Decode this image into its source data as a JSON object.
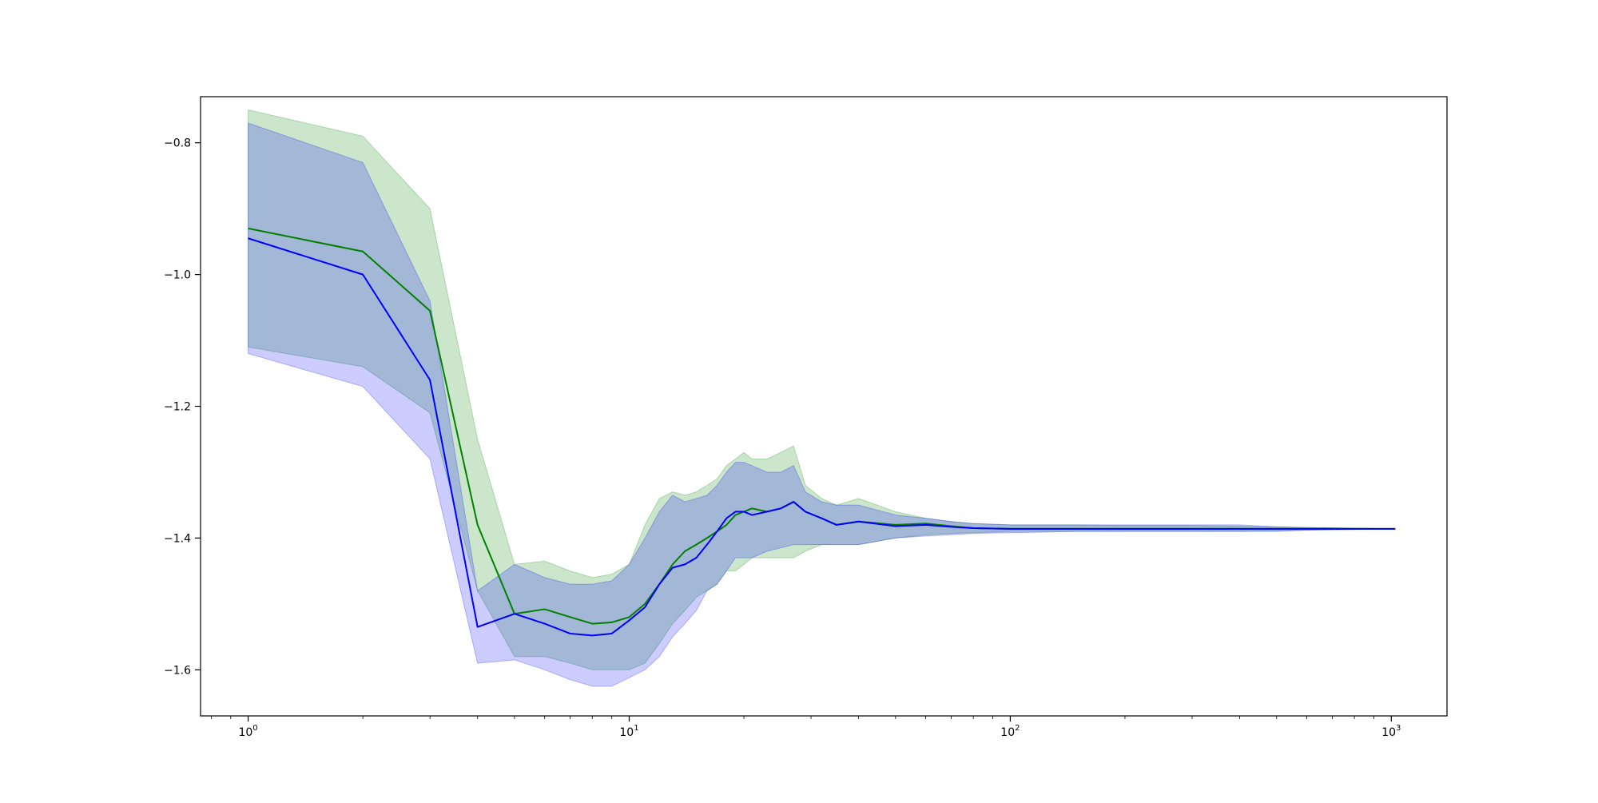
{
  "chart_data": {
    "type": "line",
    "title": "",
    "xlabel": "",
    "ylabel": "",
    "xscale": "log",
    "xlim": [
      0.75,
      1400
    ],
    "ylim": [
      -1.67,
      -0.73
    ],
    "grid": false,
    "x_ticks": [
      {
        "value": 1,
        "base": "10",
        "exp": "0"
      },
      {
        "value": 10,
        "base": "10",
        "exp": "1"
      },
      {
        "value": 100,
        "base": "10",
        "exp": "2"
      },
      {
        "value": 1000,
        "base": "10",
        "exp": "3"
      }
    ],
    "y_ticks": [
      {
        "value": -0.8,
        "label": "−0.8"
      },
      {
        "value": -1.0,
        "label": "−1.0"
      },
      {
        "value": -1.2,
        "label": "−1.2"
      },
      {
        "value": -1.4,
        "label": "−1.4"
      },
      {
        "value": -1.6,
        "label": "−1.6"
      }
    ],
    "series": [
      {
        "color": "#008000",
        "band_color": "#008000",
        "band_opacity": 0.2,
        "x": [
          1,
          2,
          3,
          4,
          5,
          6,
          7,
          8,
          9,
          10,
          11,
          12,
          13,
          14,
          15,
          16,
          17,
          18,
          19,
          20,
          21,
          23,
          25,
          27,
          29,
          32,
          35,
          40,
          50,
          60,
          70,
          80,
          100,
          150,
          200,
          300,
          400,
          500,
          600,
          1024
        ],
        "mean": [
          -0.93,
          -0.965,
          -1.055,
          -1.38,
          -1.515,
          -1.508,
          -1.52,
          -1.53,
          -1.528,
          -1.52,
          -1.5,
          -1.47,
          -1.44,
          -1.42,
          -1.41,
          -1.4,
          -1.39,
          -1.38,
          -1.365,
          -1.36,
          -1.355,
          -1.36,
          -1.355,
          -1.345,
          -1.36,
          -1.37,
          -1.38,
          -1.375,
          -1.38,
          -1.378,
          -1.382,
          -1.385,
          -1.386,
          -1.386,
          -1.386,
          -1.386,
          -1.386,
          -1.386,
          -1.386,
          -1.386
        ],
        "upper": [
          -0.75,
          -0.79,
          -0.9,
          -1.25,
          -1.44,
          -1.435,
          -1.45,
          -1.46,
          -1.455,
          -1.44,
          -1.38,
          -1.34,
          -1.33,
          -1.335,
          -1.33,
          -1.32,
          -1.31,
          -1.29,
          -1.28,
          -1.27,
          -1.28,
          -1.28,
          -1.27,
          -1.26,
          -1.32,
          -1.34,
          -1.35,
          -1.34,
          -1.36,
          -1.37,
          -1.375,
          -1.378,
          -1.38,
          -1.38,
          -1.381,
          -1.381,
          -1.382,
          -1.383,
          -1.384,
          -1.386
        ],
        "lower": [
          -1.11,
          -1.14,
          -1.21,
          -1.48,
          -1.58,
          -1.58,
          -1.59,
          -1.6,
          -1.6,
          -1.6,
          -1.59,
          -1.56,
          -1.53,
          -1.51,
          -1.49,
          -1.48,
          -1.47,
          -1.45,
          -1.45,
          -1.44,
          -1.43,
          -1.43,
          -1.43,
          -1.43,
          -1.42,
          -1.41,
          -1.41,
          -1.41,
          -1.4,
          -1.395,
          -1.393,
          -1.392,
          -1.39,
          -1.39,
          -1.39,
          -1.39,
          -1.39,
          -1.389,
          -1.388,
          -1.386
        ]
      },
      {
        "color": "#0000ff",
        "band_color": "#0000ff",
        "band_opacity": 0.2,
        "x": [
          1,
          2,
          3,
          4,
          5,
          6,
          7,
          8,
          9,
          10,
          11,
          12,
          13,
          14,
          15,
          16,
          17,
          18,
          19,
          20,
          21,
          23,
          25,
          27,
          29,
          32,
          35,
          40,
          50,
          60,
          70,
          80,
          100,
          150,
          200,
          300,
          400,
          500,
          600,
          1024
        ],
        "mean": [
          -0.945,
          -1.0,
          -1.16,
          -1.535,
          -1.515,
          -1.53,
          -1.545,
          -1.548,
          -1.545,
          -1.525,
          -1.505,
          -1.47,
          -1.445,
          -1.44,
          -1.43,
          -1.41,
          -1.39,
          -1.37,
          -1.36,
          -1.36,
          -1.365,
          -1.36,
          -1.355,
          -1.345,
          -1.36,
          -1.37,
          -1.38,
          -1.375,
          -1.382,
          -1.38,
          -1.383,
          -1.385,
          -1.386,
          -1.386,
          -1.386,
          -1.386,
          -1.386,
          -1.386,
          -1.386,
          -1.386
        ],
        "upper": [
          -0.77,
          -0.83,
          -1.04,
          -1.48,
          -1.44,
          -1.46,
          -1.47,
          -1.47,
          -1.465,
          -1.44,
          -1.4,
          -1.36,
          -1.335,
          -1.345,
          -1.34,
          -1.335,
          -1.32,
          -1.3,
          -1.285,
          -1.285,
          -1.29,
          -1.3,
          -1.3,
          -1.29,
          -1.33,
          -1.345,
          -1.35,
          -1.35,
          -1.365,
          -1.37,
          -1.375,
          -1.378,
          -1.38,
          -1.38,
          -1.38,
          -1.38,
          -1.38,
          -1.383,
          -1.384,
          -1.386
        ],
        "lower": [
          -1.12,
          -1.17,
          -1.28,
          -1.59,
          -1.585,
          -1.6,
          -1.615,
          -1.625,
          -1.625,
          -1.612,
          -1.6,
          -1.58,
          -1.55,
          -1.53,
          -1.51,
          -1.48,
          -1.47,
          -1.45,
          -1.43,
          -1.43,
          -1.43,
          -1.42,
          -1.415,
          -1.41,
          -1.41,
          -1.41,
          -1.41,
          -1.41,
          -1.4,
          -1.397,
          -1.395,
          -1.393,
          -1.392,
          -1.39,
          -1.39,
          -1.39,
          -1.39,
          -1.39,
          -1.388,
          -1.386
        ]
      }
    ]
  }
}
